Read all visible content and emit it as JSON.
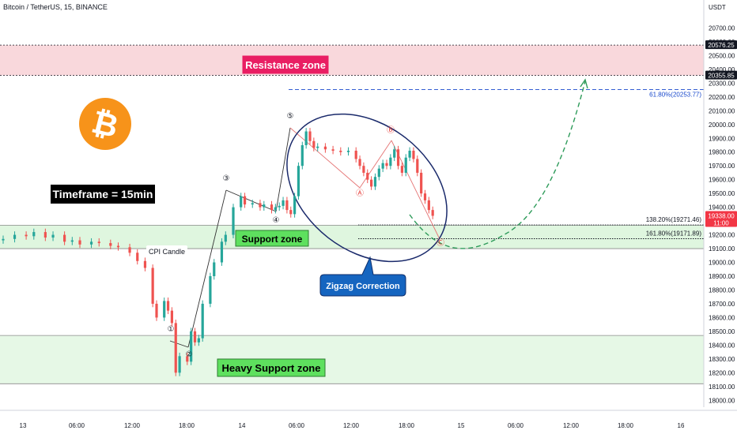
{
  "header": {
    "title": "Bitcoin / TetherUS, 15, BINANCE"
  },
  "chart_data": {
    "type": "candlestick",
    "symbol": "Bitcoin / TetherUS",
    "interval": "15",
    "exchange": "BINANCE",
    "currency": "USDT",
    "ylim": [
      17950,
      20800
    ],
    "y_ticks": [
      18000,
      18100,
      18200,
      18300,
      18400,
      18500,
      18600,
      18700,
      18800,
      18900,
      19000,
      19100,
      19200,
      19300,
      19400,
      19500,
      19600,
      19700,
      19800,
      19900,
      20000,
      20100,
      20200,
      20300,
      20400,
      20500,
      20600,
      20700
    ],
    "x_ticks": [
      "13",
      "06:00",
      "12:00",
      "18:00",
      "14",
      "06:00",
      "12:00",
      "18:00",
      "15",
      "06:00",
      "12:00",
      "18:00",
      "16"
    ],
    "price_tags": [
      {
        "value": "20576.25",
        "style": "dark"
      },
      {
        "value": "20355.85",
        "style": "dark"
      },
      {
        "value": "19338.00",
        "sub": "11:00",
        "style": "red"
      }
    ],
    "series": [
      {
        "name": "price",
        "points": [
          [
            0,
            19170
          ],
          [
            3,
            19200
          ],
          [
            6,
            19190
          ],
          [
            8,
            19220
          ],
          [
            11,
            19180
          ],
          [
            13,
            19200
          ],
          [
            16,
            19150
          ],
          [
            18,
            19160
          ],
          [
            20,
            19130
          ],
          [
            23,
            19150
          ],
          [
            25,
            19140
          ],
          [
            28,
            19120
          ],
          [
            30,
            19110
          ],
          [
            33,
            19070
          ],
          [
            35,
            19010
          ],
          [
            37,
            18960
          ],
          [
            39,
            18700
          ],
          [
            40,
            18600
          ],
          [
            42,
            18720
          ],
          [
            43,
            18650
          ],
          [
            44,
            18560
          ],
          [
            45,
            18200
          ],
          [
            46,
            18320
          ],
          [
            48,
            18280
          ],
          [
            49,
            18500
          ],
          [
            50,
            18420
          ],
          [
            51,
            18450
          ],
          [
            52,
            18700
          ],
          [
            54,
            18900
          ],
          [
            55,
            19000
          ],
          [
            57,
            19150
          ],
          [
            58,
            19200
          ],
          [
            60,
            19400
          ],
          [
            62,
            19480
          ],
          [
            63,
            19420
          ],
          [
            65,
            19430
          ],
          [
            67,
            19400
          ],
          [
            68,
            19420
          ],
          [
            70,
            19380
          ],
          [
            71,
            19400
          ],
          [
            72,
            19410
          ],
          [
            73,
            19450
          ],
          [
            74,
            19380
          ],
          [
            75,
            19350
          ],
          [
            76,
            19480
          ],
          [
            77,
            19700
          ],
          [
            78,
            19850
          ],
          [
            79,
            19950
          ],
          [
            80,
            19880
          ],
          [
            81,
            19830
          ],
          [
            82,
            19840
          ],
          [
            84,
            19820
          ],
          [
            86,
            19810
          ],
          [
            88,
            19800
          ],
          [
            90,
            19810
          ],
          [
            92,
            19750
          ],
          [
            93,
            19700
          ],
          [
            94,
            19650
          ],
          [
            95,
            19600
          ],
          [
            96,
            19550
          ],
          [
            97,
            19620
          ],
          [
            98,
            19680
          ],
          [
            99,
            19720
          ],
          [
            100,
            19700
          ],
          [
            101,
            19760
          ],
          [
            102,
            19820
          ],
          [
            103,
            19700
          ],
          [
            104,
            19650
          ],
          [
            105,
            19760
          ],
          [
            106,
            19810
          ],
          [
            107,
            19750
          ],
          [
            108,
            19650
          ],
          [
            109,
            19500
          ],
          [
            110,
            19450
          ],
          [
            111,
            19380
          ],
          [
            112,
            19338
          ]
        ]
      }
    ],
    "zones": [
      {
        "label": "Resistance zone",
        "from": 20355.85,
        "to": 20576.25,
        "color": "#f9d8dc"
      },
      {
        "label": "Support zone",
        "from": 19100,
        "to": 19270,
        "color": "#dff6df"
      },
      {
        "label": "Heavy Support zone",
        "from": 18120,
        "to": 18470,
        "color": "#e6f8e6"
      }
    ],
    "fib_levels": [
      {
        "label": "61.80%(20253.77)",
        "value": 20253.77,
        "color": "#1848cc"
      },
      {
        "label": "138.20%(19271.46)",
        "value": 19271.46,
        "color": "#131722"
      },
      {
        "label": "161.80%(19171.89)",
        "value": 19171.89,
        "color": "#131722"
      }
    ],
    "wave_labels": [
      {
        "text": "①",
        "x": 46.5,
        "y": 18520
      },
      {
        "text": "②",
        "x": 51.5,
        "y": 18330
      },
      {
        "text": "③",
        "x": 61.5,
        "y": 19580
      },
      {
        "text": "④",
        "x": 75.5,
        "y": 19285
      },
      {
        "text": "⑤",
        "x": 79.5,
        "y": 20000
      },
      {
        "text": "Ⓐ",
        "x": 98,
        "y": 19490
      },
      {
        "text": "Ⓑ",
        "x": 107,
        "y": 19920
      },
      {
        "text": "Ⓒ",
        "x": 120.5,
        "y": 19140
      }
    ],
    "annotations": {
      "timeframe": "Timeframe = 15min",
      "cpi": "CPI Candle",
      "zigzag": "Zigzag Correction"
    }
  }
}
